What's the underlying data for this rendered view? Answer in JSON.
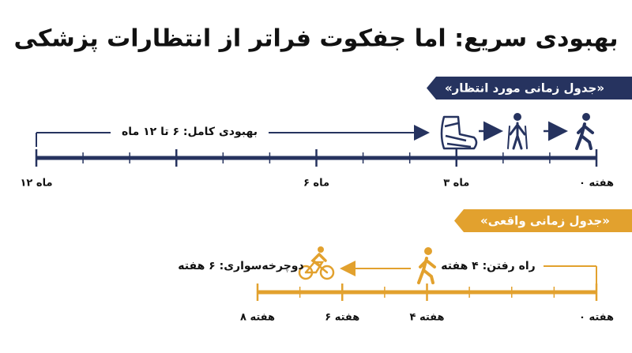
{
  "title": "بهبودی سریع: اما جفکوت فراتر از انتظارات پزشکی",
  "expected": {
    "label": "«جدول زمانی مورد انتظار»",
    "span_label": "بهبودی کامل: ۶ تا ۱۲ ماه",
    "ticks": [
      "۰ هفته",
      "۳ ماه",
      "۶ ماه",
      "۱۲ ماه"
    ]
  },
  "actual": {
    "label": "«جدول زمانی واقعی»",
    "walking": "راه رفتن: ۴ هفته",
    "cycling": "دوچرخه‌سواری: ۶ هفته",
    "ticks": [
      "۰ هفته",
      "۴ هفته",
      "۶ هفته",
      "۸ هفته"
    ]
  }
}
